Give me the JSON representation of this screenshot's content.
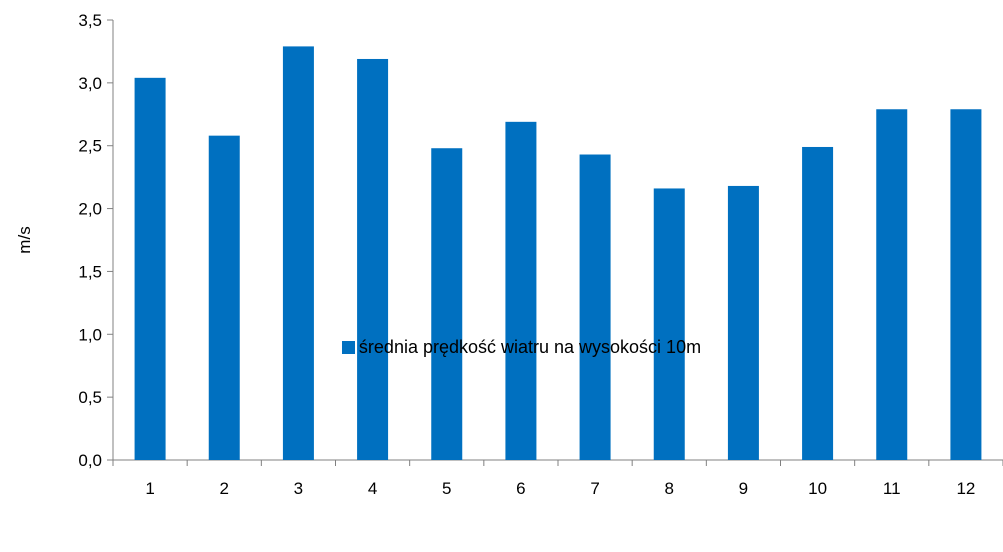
{
  "chart_data": {
    "type": "bar",
    "categories": [
      "1",
      "2",
      "3",
      "4",
      "5",
      "6",
      "7",
      "8",
      "9",
      "10",
      "11",
      "12"
    ],
    "series": [
      {
        "name": "średnia prędkość wiatru na wysokości 10m",
        "values": [
          3.04,
          2.58,
          3.29,
          3.19,
          2.48,
          2.69,
          2.43,
          2.16,
          2.18,
          2.49,
          2.79,
          2.79
        ],
        "color": "#0070C0"
      }
    ],
    "ylabel": "m/s",
    "xlabel": "",
    "ylim": [
      0,
      3.5
    ],
    "yticks": [
      "0,0",
      "0,5",
      "1,0",
      "1,5",
      "2,0",
      "2,5",
      "3,0",
      "3,5"
    ],
    "grid": false,
    "legend_position": "bottom"
  }
}
